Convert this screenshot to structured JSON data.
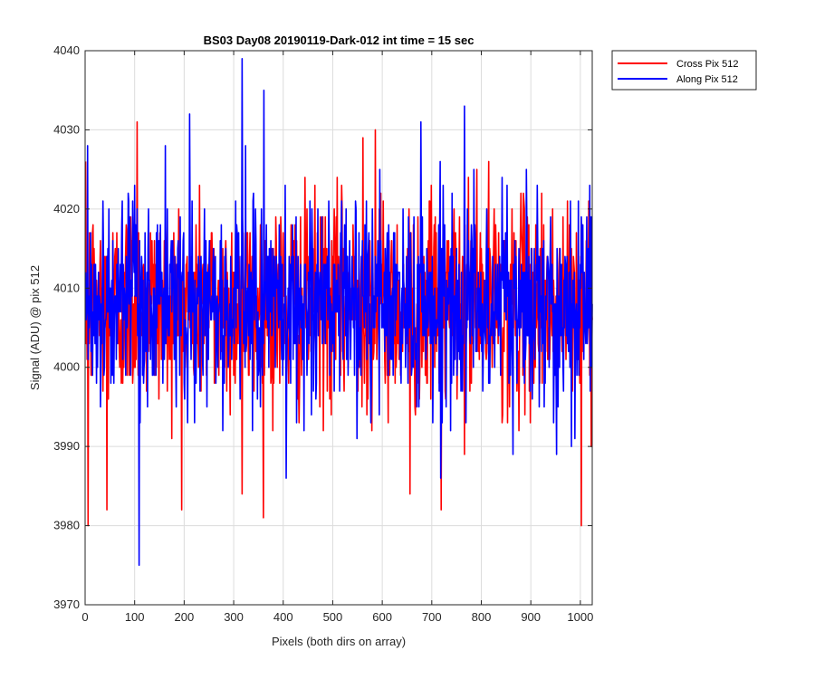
{
  "chart_data": {
    "type": "line",
    "title": "BS03 Day08 20190119-Dark-012 int time = 15 sec",
    "xlabel": "Pixels (both dirs on array)",
    "ylabel": "Signal (ADU) @ pix 512",
    "xlim": [
      0,
      1024
    ],
    "ylim": [
      3970,
      4040
    ],
    "xticks": [
      0,
      100,
      200,
      300,
      400,
      500,
      600,
      700,
      800,
      900,
      1000
    ],
    "yticks": [
      3970,
      3980,
      3990,
      4000,
      4010,
      4020,
      4030,
      4040
    ],
    "grid": true,
    "legend_position": "outside-top-right",
    "series": [
      {
        "name": "Cross Pix 512",
        "color": "#ff0000",
        "summary": {
          "count": 1024,
          "mean": 4008,
          "sd": 6.5,
          "min": 3980,
          "max": 4031
        },
        "peaks": [
          {
            "x": 5,
            "y": 3980
          },
          {
            "x": 43,
            "y": 3982
          },
          {
            "x": 104,
            "y": 4031
          },
          {
            "x": 316,
            "y": 3984
          },
          {
            "x": 560,
            "y": 4029
          },
          {
            "x": 585,
            "y": 4030
          },
          {
            "x": 655,
            "y": 3984
          },
          {
            "x": 718,
            "y": 3982
          },
          {
            "x": 790,
            "y": 4025
          },
          {
            "x": 1001,
            "y": 3980
          }
        ]
      },
      {
        "name": "Along Pix 512",
        "color": "#0000ff",
        "summary": {
          "count": 1024,
          "mean": 4008,
          "sd": 6.5,
          "min": 3975,
          "max": 4039
        },
        "peaks": [
          {
            "x": 4,
            "y": 4028
          },
          {
            "x": 108,
            "y": 4032
          },
          {
            "x": 108,
            "y": 3975
          },
          {
            "x": 210,
            "y": 4032
          },
          {
            "x": 316,
            "y": 4039
          },
          {
            "x": 360,
            "y": 4035
          },
          {
            "x": 405,
            "y": 3986
          },
          {
            "x": 765,
            "y": 4033
          },
          {
            "x": 1018,
            "y": 4023
          }
        ]
      }
    ]
  }
}
